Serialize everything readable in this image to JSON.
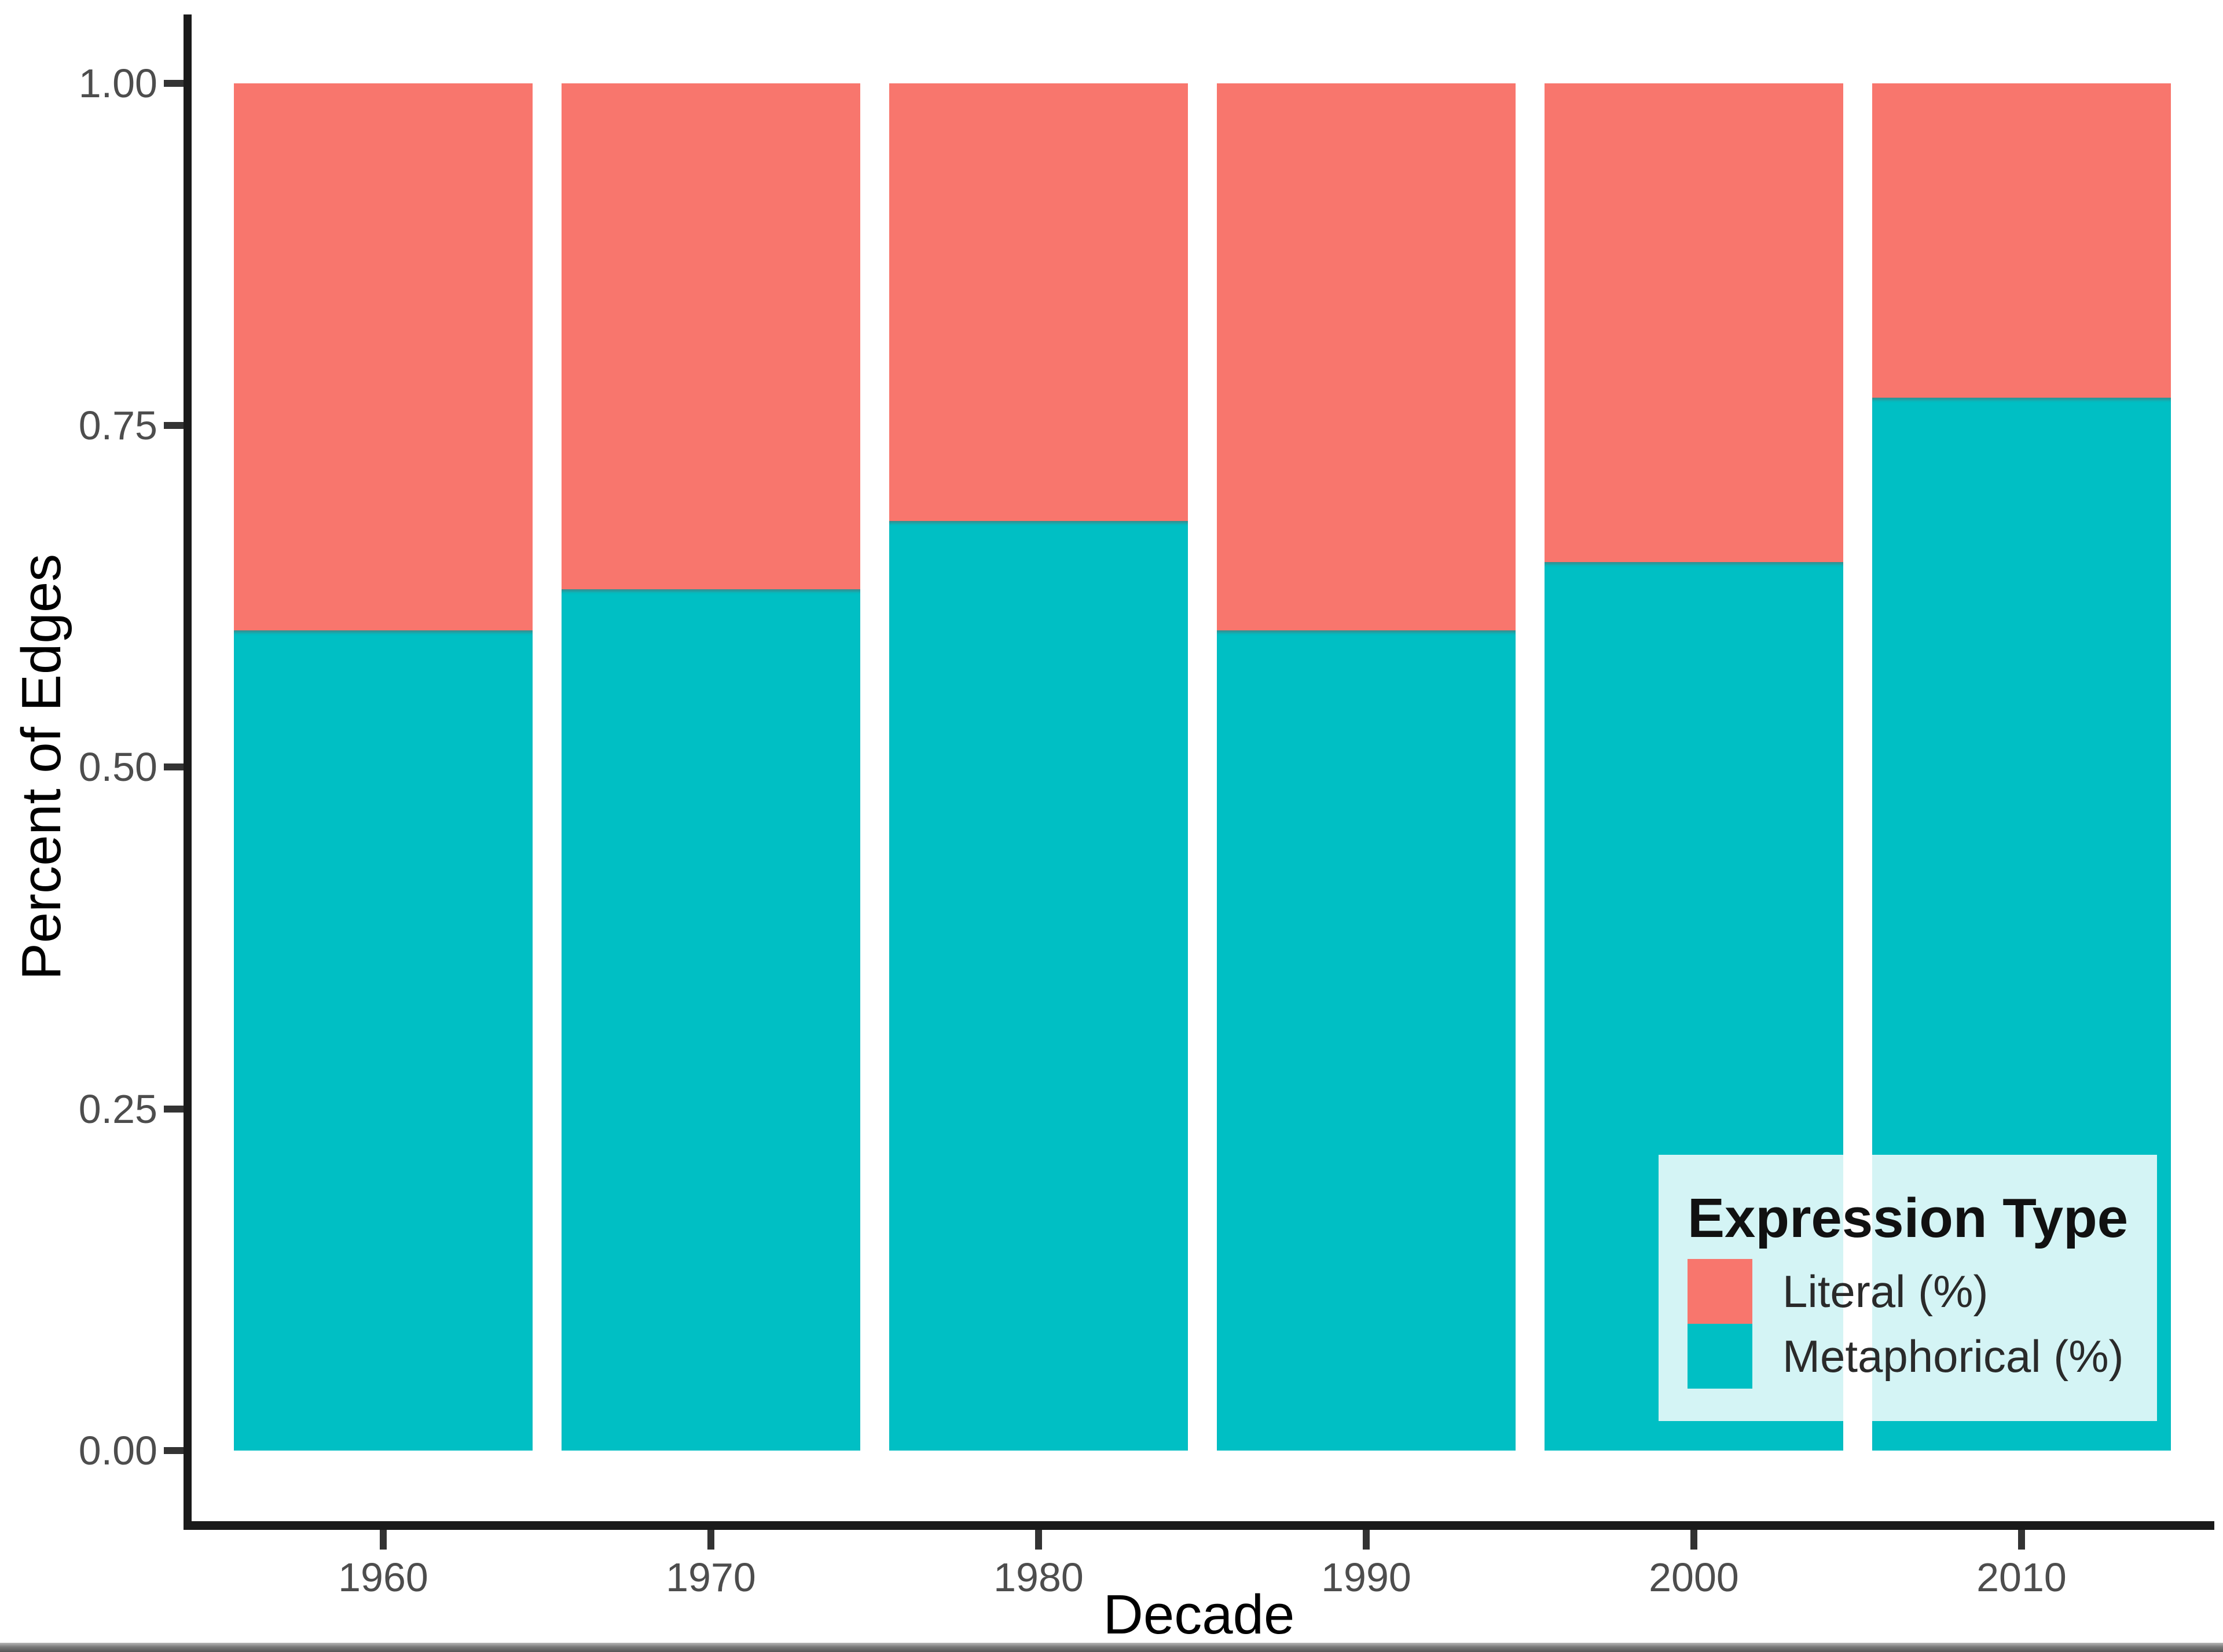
{
  "colors": {
    "literal": "#F8766D",
    "metaphorical": "#00BFC4",
    "axis_line": "#1a1a1a",
    "tick_mark": "#333333",
    "tick_text": "#4d4d4d",
    "axis_title_text": "#000000",
    "legend_background": "rgba(255,255,255,0.83)",
    "bottom_strip": "#545454"
  },
  "chart_data": {
    "type": "bar",
    "stacked": true,
    "title": "",
    "xlabel": "Decade",
    "ylabel": "Percent of Edges",
    "categories": [
      "1960",
      "1970",
      "1980",
      "1990",
      "2000",
      "2010"
    ],
    "series": [
      {
        "name": "Literal (%)",
        "color": "#F8766D",
        "values": [
          0.4,
          0.37,
          0.32,
          0.4,
          0.35,
          0.23
        ]
      },
      {
        "name": "Metaphorical (%)",
        "color": "#00BFC4",
        "values": [
          0.6,
          0.63,
          0.68,
          0.6,
          0.65,
          0.77
        ]
      }
    ],
    "ylim": [
      0,
      1
    ],
    "grid": "off",
    "yticks": [
      {
        "value": 1.0,
        "label": "1.00"
      },
      {
        "value": 0.75,
        "label": "0.75"
      },
      {
        "value": 0.5,
        "label": "0.50"
      },
      {
        "value": 0.25,
        "label": "0.25"
      },
      {
        "value": 0.0,
        "label": "0.00"
      }
    ],
    "legend": {
      "title": "Expression Type",
      "position": "bottom-right-inside",
      "items": [
        {
          "label": "Literal (%)",
          "color": "#F8766D"
        },
        {
          "label": "Metaphorical (%)",
          "color": "#00BFC4"
        }
      ]
    }
  }
}
